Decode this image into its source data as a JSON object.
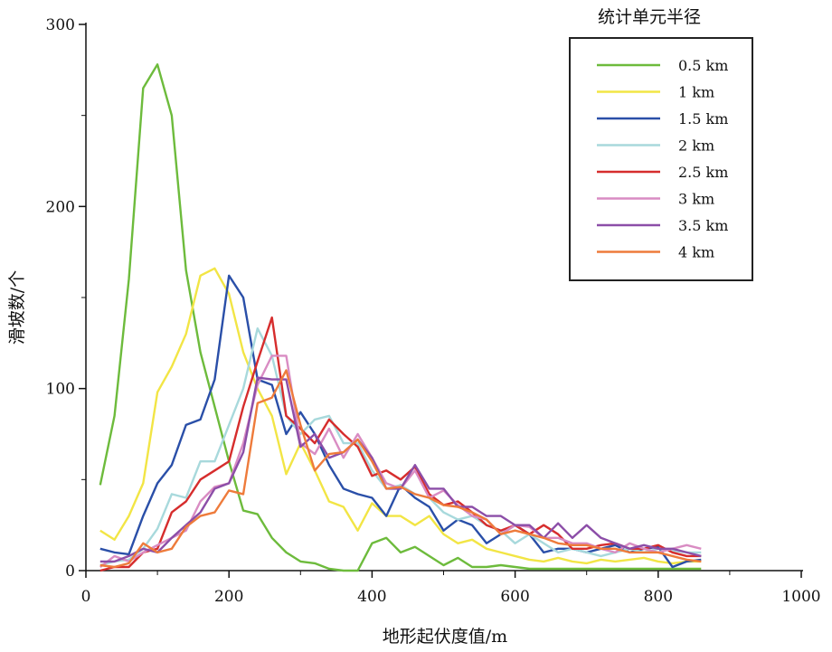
{
  "chart_data": {
    "type": "line",
    "xlabel": "地形起伏度值/m",
    "ylabel": "滑坡数/个",
    "xlim": [
      0,
      1000
    ],
    "ylim": [
      0,
      300
    ],
    "x_ticks": [
      "0",
      "200",
      "400",
      "600",
      "800",
      "1000"
    ],
    "y_ticks": [
      "0",
      "100",
      "200",
      "300"
    ],
    "grid": false,
    "legend_title": "统计单元半径",
    "legend_position": "top-right",
    "x": [
      20,
      40,
      60,
      80,
      100,
      120,
      140,
      160,
      180,
      200,
      220,
      240,
      260,
      280,
      300,
      320,
      340,
      360,
      380,
      400,
      420,
      440,
      460,
      480,
      500,
      520,
      540,
      560,
      580,
      600,
      620,
      640,
      660,
      680,
      700,
      720,
      740,
      760,
      780,
      800,
      820,
      840,
      860
    ],
    "series": [
      {
        "name": "0.5 km",
        "color": "#6dbb3c",
        "values": [
          47,
          85,
          160,
          265,
          278,
          250,
          165,
          120,
          90,
          60,
          33,
          31,
          18,
          10,
          5,
          4,
          1,
          0,
          0,
          15,
          18,
          10,
          13,
          8,
          3,
          7,
          2,
          2,
          3,
          2,
          1,
          1,
          1,
          1,
          1,
          1,
          1,
          1,
          1,
          1,
          1,
          1,
          1
        ]
      },
      {
        "name": "1 km",
        "color": "#f2e545",
        "values": [
          22,
          17,
          30,
          48,
          98,
          112,
          130,
          162,
          166,
          152,
          120,
          100,
          85,
          53,
          70,
          55,
          38,
          35,
          22,
          37,
          30,
          30,
          25,
          30,
          20,
          15,
          17,
          12,
          10,
          8,
          6,
          5,
          7,
          5,
          4,
          6,
          5,
          6,
          7,
          5,
          4,
          5,
          5
        ]
      },
      {
        "name": "1.5 km",
        "color": "#2a4fa8",
        "values": [
          12,
          10,
          9,
          30,
          48,
          58,
          80,
          83,
          105,
          162,
          150,
          105,
          102,
          75,
          87,
          75,
          58,
          45,
          42,
          40,
          30,
          47,
          40,
          35,
          22,
          28,
          25,
          15,
          20,
          25,
          20,
          10,
          12,
          12,
          10,
          12,
          14,
          10,
          12,
          13,
          2,
          5,
          6
        ]
      },
      {
        "name": "2 km",
        "color": "#a8d9dc",
        "values": [
          3,
          5,
          6,
          12,
          23,
          42,
          40,
          60,
          60,
          80,
          100,
          133,
          118,
          85,
          75,
          83,
          85,
          70,
          70,
          55,
          45,
          47,
          42,
          40,
          32,
          28,
          30,
          25,
          22,
          15,
          20,
          15,
          10,
          12,
          10,
          8,
          10,
          12,
          10,
          12,
          11,
          10,
          10
        ]
      },
      {
        "name": "2.5 km",
        "color": "#d62d2d",
        "values": [
          0,
          2,
          2,
          10,
          12,
          32,
          38,
          50,
          55,
          60,
          90,
          115,
          139,
          85,
          78,
          70,
          83,
          75,
          68,
          52,
          55,
          50,
          57,
          42,
          36,
          38,
          32,
          25,
          22,
          25,
          20,
          25,
          20,
          12,
          12,
          14,
          15,
          12,
          12,
          14,
          10,
          8,
          8
        ]
      },
      {
        "name": "3 km",
        "color": "#d98cc3",
        "values": [
          2,
          8,
          5,
          10,
          14,
          18,
          22,
          38,
          46,
          48,
          70,
          102,
          118,
          118,
          70,
          64,
          78,
          62,
          75,
          62,
          48,
          45,
          55,
          40,
          44,
          36,
          30,
          28,
          20,
          25,
          24,
          18,
          18,
          15,
          15,
          12,
          10,
          15,
          12,
          10,
          12,
          14,
          12
        ]
      },
      {
        "name": "3.5 km",
        "color": "#8c4ea8",
        "values": [
          5,
          5,
          8,
          12,
          10,
          18,
          25,
          32,
          45,
          48,
          65,
          106,
          105,
          105,
          68,
          75,
          62,
          65,
          72,
          62,
          45,
          45,
          58,
          45,
          45,
          35,
          35,
          30,
          30,
          25,
          25,
          18,
          26,
          18,
          25,
          18,
          15,
          12,
          14,
          12,
          12,
          10,
          8
        ]
      },
      {
        "name": "4 km",
        "color": "#ee7b3b",
        "values": [
          3,
          2,
          4,
          15,
          10,
          12,
          24,
          30,
          32,
          44,
          42,
          92,
          95,
          110,
          80,
          55,
          64,
          65,
          72,
          60,
          45,
          46,
          42,
          40,
          36,
          35,
          32,
          28,
          20,
          22,
          20,
          18,
          15,
          14,
          14,
          12,
          12,
          10,
          10,
          10,
          8,
          6,
          5
        ]
      }
    ]
  }
}
